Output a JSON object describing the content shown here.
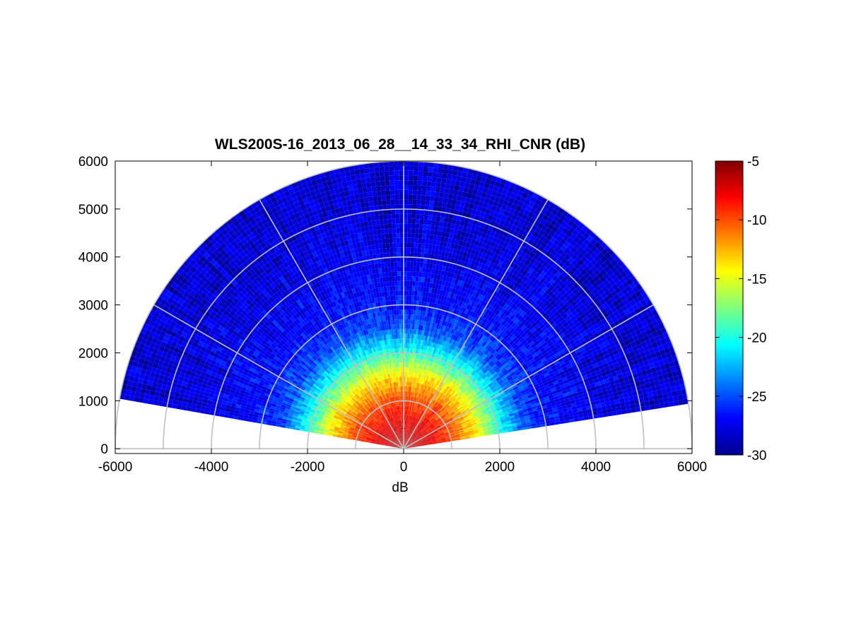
{
  "chart_data": {
    "type": "heatmap",
    "subtype": "polar-rhi-sector",
    "title": "WLS200S-16_2013_06_28__14_33_34_RHI_CNR (dB)",
    "xlabel": "dB",
    "ylabel": "",
    "xlim": [
      -6000,
      6000
    ],
    "ylim": [
      -100,
      6000
    ],
    "xticks": [
      -6000,
      -4000,
      -2000,
      0,
      2000,
      4000,
      6000
    ],
    "yticks": [
      0,
      1000,
      2000,
      3000,
      4000,
      5000,
      6000
    ],
    "grid": true,
    "polar_grid": {
      "range_rings": [
        1000,
        2000,
        3000,
        4000,
        5000,
        6000
      ],
      "spoke_angles_deg": [
        0,
        30,
        60,
        90,
        120,
        150,
        180
      ]
    },
    "scan": {
      "elevation_range_deg": [
        9,
        170
      ],
      "max_range": 6000,
      "range_gate_step": 100,
      "elevation_step_deg": 1
    },
    "cnr_profile_db": {
      "ranges": [
        0,
        500,
        1000,
        1500,
        2000,
        2500,
        3000,
        4000,
        5000,
        6000
      ],
      "values": [
        -6,
        -7.5,
        -10,
        -14,
        -20,
        -25,
        -26.5,
        -27.5,
        -28,
        -28
      ]
    },
    "colorbar": {
      "colormap": "jet",
      "range": [
        -30,
        -5
      ],
      "ticks": [
        -5,
        -10,
        -15,
        -20,
        -25,
        -30
      ],
      "tick_labels": [
        "-5",
        "-10",
        "-15",
        "-20",
        "-25",
        "-30"
      ]
    }
  }
}
